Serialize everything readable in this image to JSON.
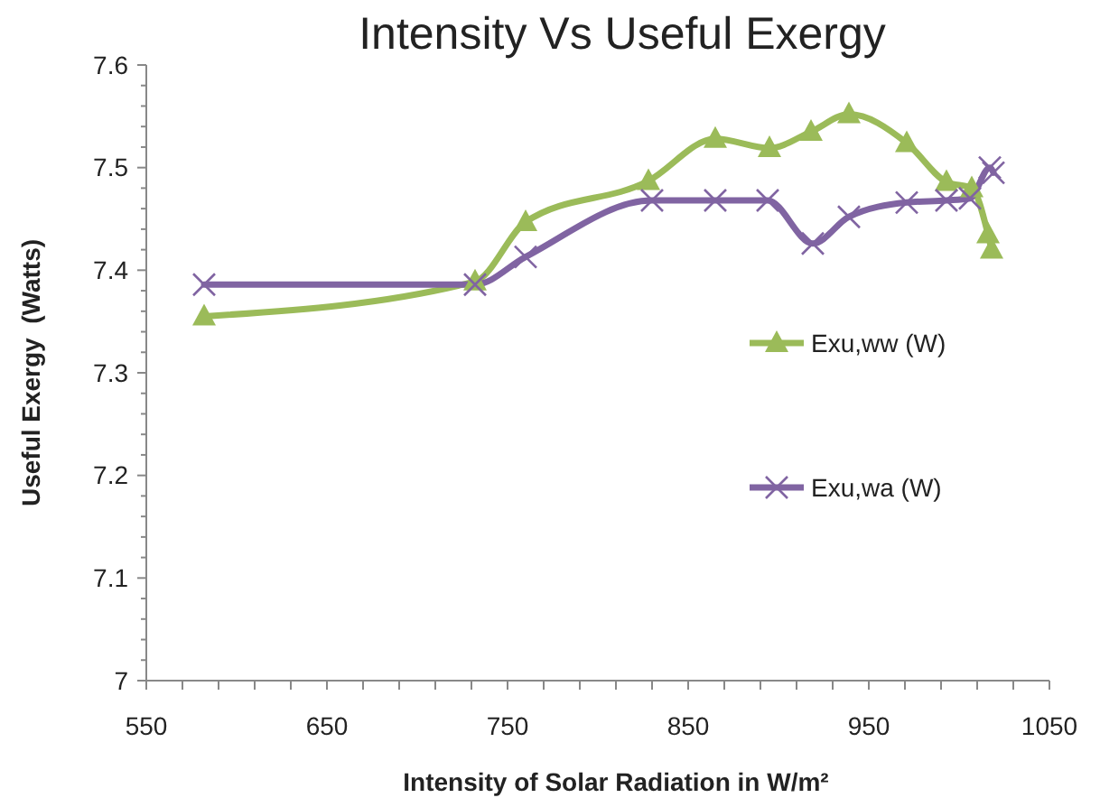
{
  "chart_data": {
    "type": "line",
    "title": "Intensity Vs Useful Exergy",
    "xlabel": "Intensity of Solar Radiation in W/m²",
    "ylabel": "Useful Exergy  (Watts)",
    "xlim": [
      550,
      1050
    ],
    "xticks": [
      550,
      {
        "value": 570,
        "label": null
      },
      {
        "value": 590,
        "label": null
      },
      {
        "value": 610,
        "label": null
      },
      {
        "value": 630,
        "label": null
      },
      650,
      {
        "value": 670,
        "label": null
      },
      {
        "value": 690,
        "label": null
      },
      {
        "value": 710,
        "label": null
      },
      {
        "value": 730,
        "label": null
      },
      750,
      {
        "value": 770,
        "label": null
      },
      {
        "value": 790,
        "label": null
      },
      {
        "value": 810,
        "label": null
      },
      {
        "value": 830,
        "label": null
      },
      850,
      {
        "value": 870,
        "label": null
      },
      {
        "value": 890,
        "label": null
      },
      {
        "value": 910,
        "label": null
      },
      {
        "value": 930,
        "label": null
      },
      950,
      {
        "value": 970,
        "label": null
      },
      {
        "value": 990,
        "label": null
      },
      {
        "value": 1010,
        "label": null
      },
      {
        "value": 1030,
        "label": null
      },
      1050
    ],
    "ylim": [
      7,
      7.6
    ],
    "yticks": [
      7,
      {
        "value": 7.02,
        "label": null
      },
      {
        "value": 7.04,
        "label": null
      },
      {
        "value": 7.06,
        "label": null
      },
      {
        "value": 7.08,
        "label": null
      },
      7.1,
      {
        "value": 7.12,
        "label": null
      },
      {
        "value": 7.14,
        "label": null
      },
      {
        "value": 7.16,
        "label": null
      },
      {
        "value": 7.18,
        "label": null
      },
      7.2,
      {
        "value": 7.22,
        "label": null
      },
      {
        "value": 7.24,
        "label": null
      },
      {
        "value": 7.26,
        "label": null
      },
      {
        "value": 7.28,
        "label": null
      },
      7.3,
      {
        "value": 7.32,
        "label": null
      },
      {
        "value": 7.34,
        "label": null
      },
      {
        "value": 7.36,
        "label": null
      },
      {
        "value": 7.38,
        "label": null
      },
      7.4,
      {
        "value": 7.42,
        "label": null
      },
      {
        "value": 7.44,
        "label": null
      },
      {
        "value": 7.46,
        "label": null
      },
      {
        "value": 7.48,
        "label": null
      },
      7.5,
      {
        "value": 7.52,
        "label": null
      },
      {
        "value": 7.54,
        "label": null
      },
      {
        "value": 7.56,
        "label": null
      },
      {
        "value": 7.58,
        "label": null
      },
      7.6
    ],
    "grid": false,
    "legend": "right",
    "line_style": "solid",
    "series": [
      {
        "name": "Exu,ww (W)",
        "color": "#9bbb59",
        "marker": "triangle",
        "x": [
          582,
          732,
          760,
          828,
          865,
          895,
          918,
          939,
          971,
          993,
          1007,
          1016,
          1018
        ],
        "values": [
          7.355,
          7.389,
          7.447,
          7.487,
          7.528,
          7.519,
          7.535,
          7.552,
          7.524,
          7.486,
          7.48,
          7.435,
          7.42
        ]
      },
      {
        "name": "Exu,wa (W)",
        "color": "#8064a2",
        "marker": "cross",
        "x": [
          582,
          732,
          760,
          830,
          865,
          894,
          919,
          939,
          971,
          993,
          1006,
          1017,
          1019
        ],
        "values": [
          7.386,
          7.386,
          7.413,
          7.468,
          7.468,
          7.468,
          7.426,
          7.452,
          7.466,
          7.468,
          7.47,
          7.5,
          7.495
        ]
      }
    ]
  }
}
